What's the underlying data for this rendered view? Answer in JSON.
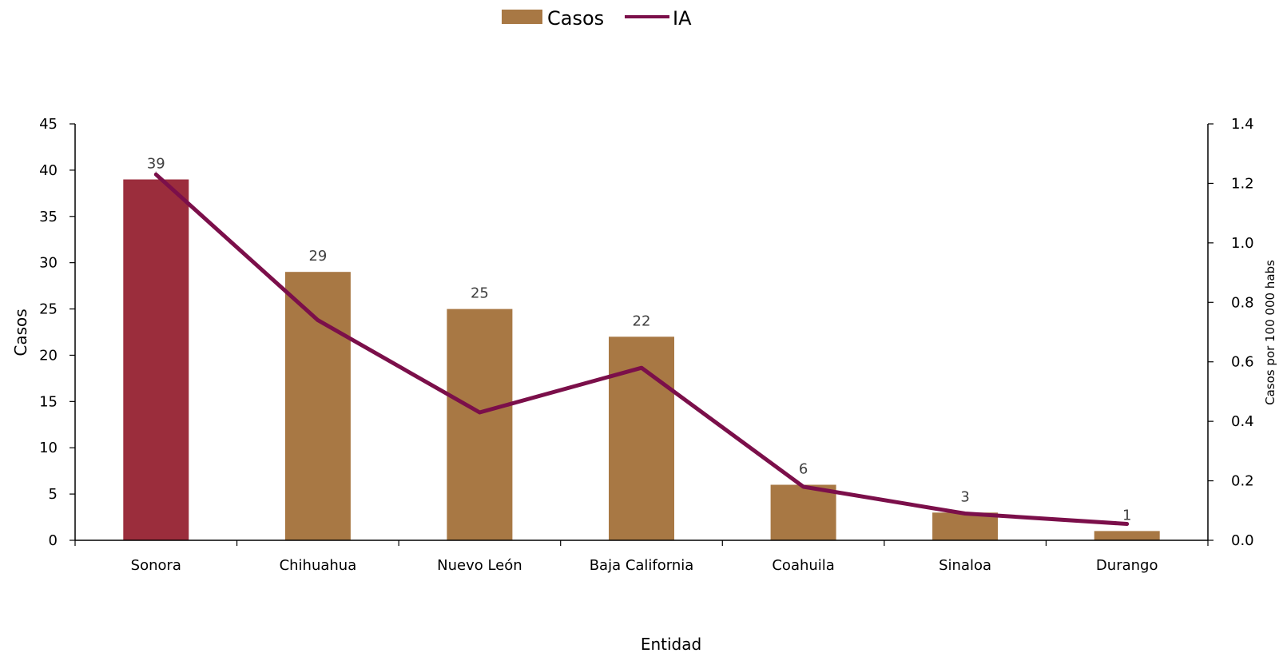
{
  "chart_data": {
    "type": "bar",
    "categories": [
      "Sonora",
      "Chihuahua",
      "Nuevo León",
      "Baja California",
      "Coahuila",
      "Sinaloa",
      "Durango"
    ],
    "series": [
      {
        "name": "Casos",
        "type": "bar",
        "axis": "left",
        "values": [
          39,
          29,
          25,
          22,
          6,
          3,
          1
        ],
        "color": "#A87844",
        "highlight": {
          "index": 0,
          "color": "#9B2D3C"
        }
      },
      {
        "name": "IA",
        "type": "line",
        "axis": "right",
        "values": [
          1.23,
          0.74,
          0.43,
          0.58,
          0.18,
          0.09,
          0.055
        ],
        "color": "#7B0F4A"
      }
    ],
    "data_labels": [
      "39",
      "29",
      "25",
      "22",
      "6",
      "3",
      "1"
    ],
    "xlabel": "Entidad",
    "ylabel": "Casos",
    "y2label": "Casos por 100 000 habs",
    "ylim": [
      0,
      45
    ],
    "y2lim": [
      0,
      1.4
    ],
    "yticks": [
      "0",
      "5",
      "10",
      "15",
      "20",
      "25",
      "30",
      "35",
      "40",
      "45"
    ],
    "y2ticks": [
      "0.0",
      "0.2",
      "0.4",
      "0.6",
      "0.8",
      "1.0",
      "1.2",
      "1.4"
    ],
    "legend_position": "top-center",
    "grid": false
  }
}
